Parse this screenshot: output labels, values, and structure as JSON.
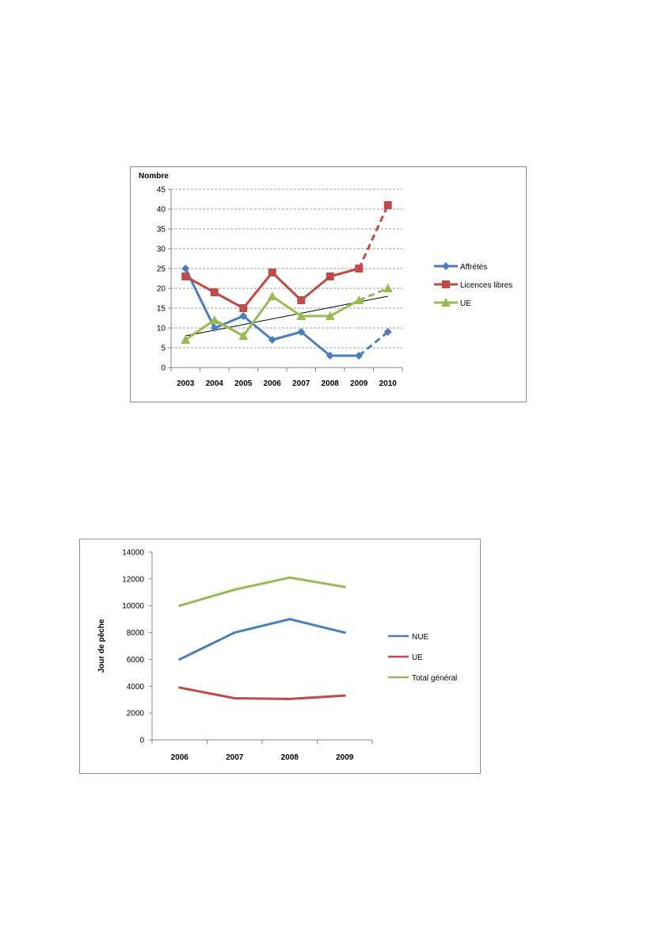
{
  "chart_data": [
    {
      "type": "line",
      "ylabel": "Nombre",
      "categories": [
        "2003",
        "2004",
        "2005",
        "2006",
        "2007",
        "2008",
        "2009",
        "2010"
      ],
      "ylim": [
        0,
        45
      ],
      "yticks": [
        0,
        5,
        10,
        15,
        20,
        25,
        30,
        35,
        40,
        45
      ],
      "grid": true,
      "legend_position": "right",
      "series": [
        {
          "name": "Affrétés",
          "values": [
            25,
            10,
            13,
            7,
            9,
            3,
            3,
            9
          ],
          "color": "#4a7ebb",
          "marker": "diamond",
          "dashed_last_segment": true
        },
        {
          "name": "Licences libres",
          "values": [
            23,
            19,
            15,
            24,
            17,
            23,
            25,
            41
          ],
          "color": "#be4b48",
          "marker": "square",
          "dashed_last_segment": true
        },
        {
          "name": "UE",
          "values": [
            7,
            12,
            8,
            18,
            13,
            13,
            17,
            20
          ],
          "color": "#98b954",
          "marker": "triangle",
          "dashed_last_segment": true
        }
      ],
      "trendline": {
        "series": "UE",
        "from": 8,
        "to": 18,
        "color": "#000000"
      }
    },
    {
      "type": "line",
      "ylabel": "Jour de pêche",
      "categories": [
        "2006",
        "2007",
        "2008",
        "2009"
      ],
      "ylim": [
        0,
        14000
      ],
      "yticks": [
        0,
        2000,
        4000,
        6000,
        8000,
        10000,
        12000,
        14000
      ],
      "grid": false,
      "legend_position": "right",
      "series": [
        {
          "name": "NUE",
          "values": [
            6000,
            8000,
            9000,
            8000
          ],
          "color": "#4a7ebb"
        },
        {
          "name": "UE",
          "values": [
            3900,
            3100,
            3050,
            3300
          ],
          "color": "#be4b48"
        },
        {
          "name": "Total général",
          "values": [
            10000,
            11200,
            12100,
            11400
          ],
          "color": "#98b954"
        }
      ]
    }
  ]
}
